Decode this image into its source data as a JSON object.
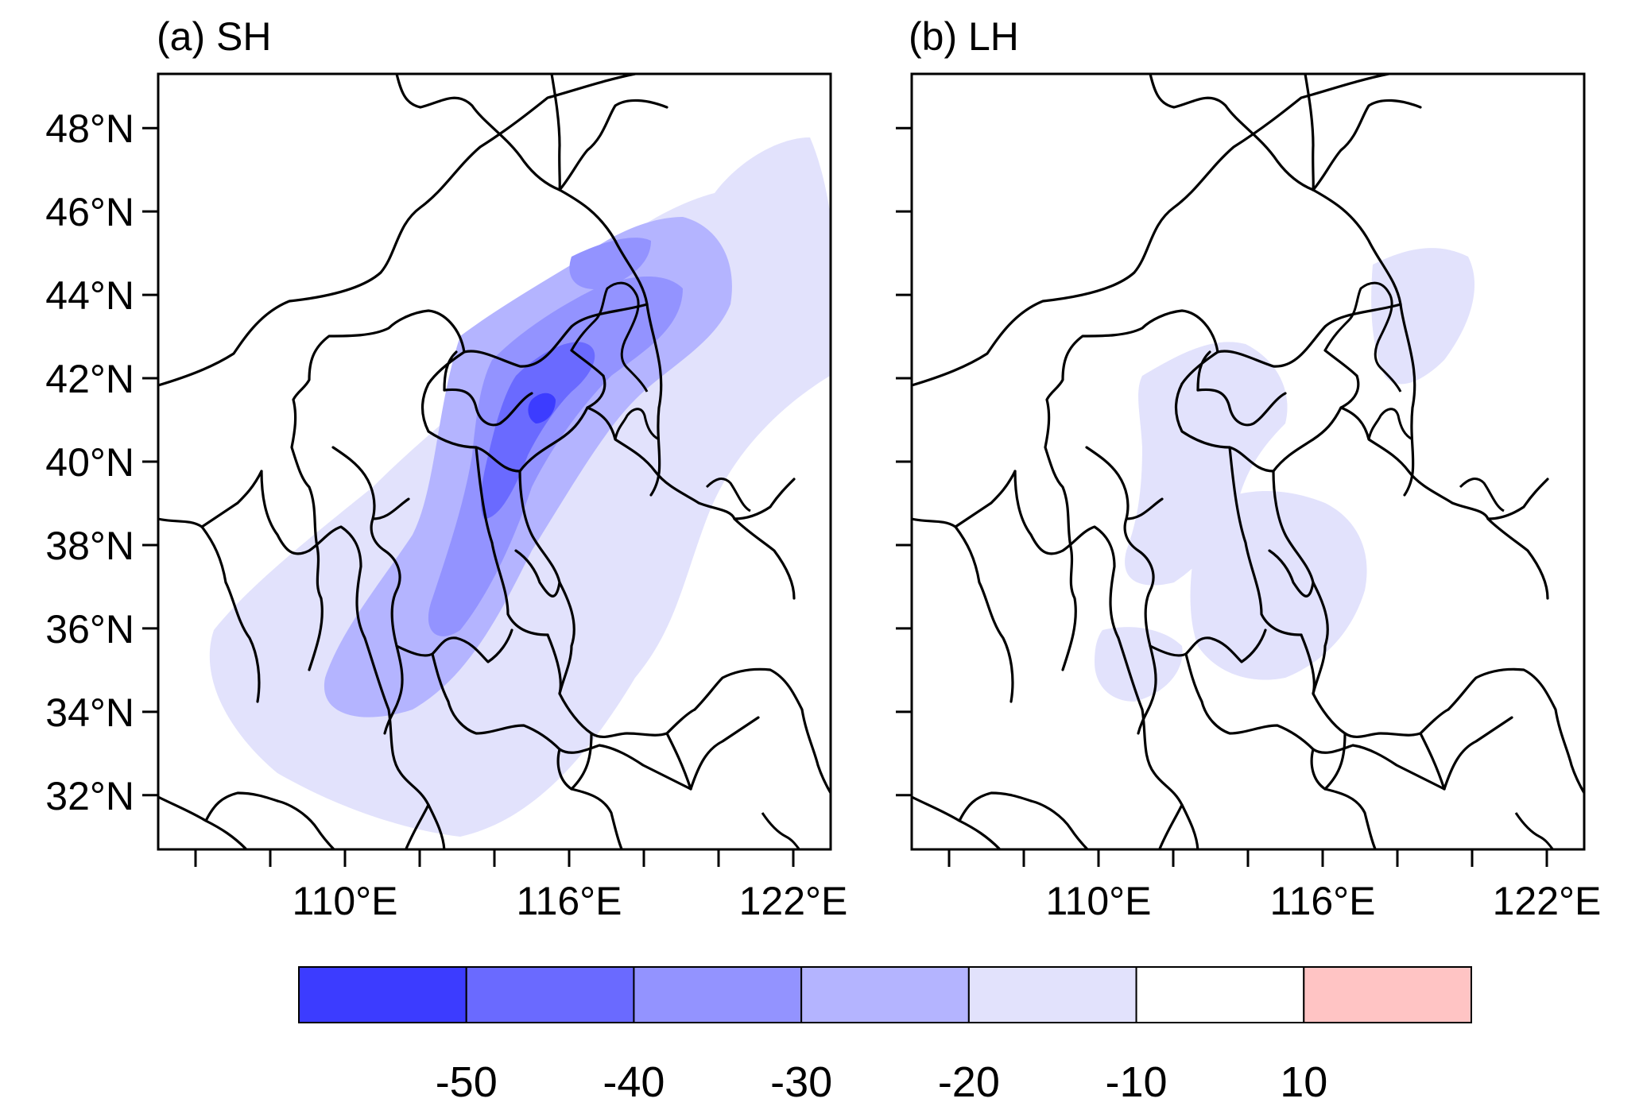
{
  "figure": {
    "panels": [
      {
        "id": "a",
        "title": "(a) SH",
        "lat_labels": [
          "48°N",
          "46°N",
          "44°N",
          "42°N",
          "40°N",
          "38°N",
          "36°N",
          "34°N",
          "32°N"
        ],
        "lon_labels": [
          "110°E",
          "116°E",
          "122°E"
        ]
      },
      {
        "id": "b",
        "title": "(b) LH",
        "lon_labels": [
          "110°E",
          "116°E",
          "122°E"
        ]
      }
    ],
    "map_extent": {
      "lon_min": 105,
      "lon_max": 123,
      "lat_min": 30.7,
      "lat_max": 49.3
    },
    "lat_ticks": [
      48,
      46,
      44,
      42,
      40,
      38,
      36,
      34,
      32
    ],
    "lon_major_ticks": [
      110,
      116,
      122
    ],
    "lon_minor_ticks": [
      106,
      108,
      112,
      114,
      118,
      120
    ],
    "colorbar": {
      "boxes": [
        {
          "color": "#3c3cff"
        },
        {
          "color": "#6a6aff"
        },
        {
          "color": "#9393ff"
        },
        {
          "color": "#b4b4ff"
        },
        {
          "color": "#e2e2fc"
        },
        {
          "color": "#ffffff"
        },
        {
          "color": "#ffc4c4"
        }
      ],
      "labels": [
        "-50",
        "-40",
        "-30",
        "-20",
        "-10",
        "10"
      ]
    }
  }
}
